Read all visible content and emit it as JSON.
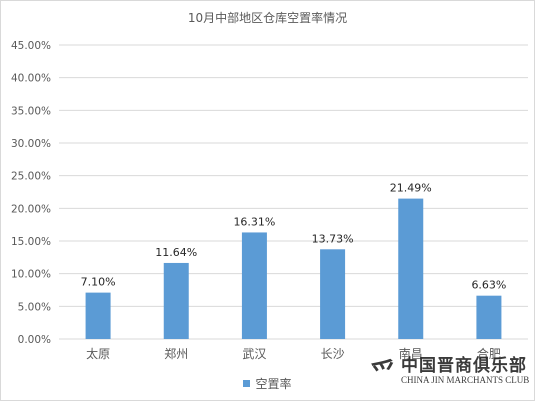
{
  "chart_data": {
    "type": "bar",
    "title": "10月中部地区仓库空置率情况",
    "categories": [
      "太原",
      "郑州",
      "武汉",
      "长沙",
      "南昌",
      "合肥"
    ],
    "series": [
      {
        "name": "空置率",
        "values": [
          7.1,
          11.64,
          16.31,
          13.73,
          21.49,
          6.63
        ],
        "color": "#5b9bd5"
      }
    ],
    "data_labels": [
      "7.10%",
      "11.64%",
      "16.31%",
      "13.73%",
      "21.49%",
      "6.63%"
    ],
    "y_ticks": [
      "0.00%",
      "5.00%",
      "10.00%",
      "15.00%",
      "20.00%",
      "25.00%",
      "30.00%",
      "35.00%",
      "40.00%",
      "45.00%"
    ],
    "ylim": [
      0,
      45
    ],
    "grid": true,
    "legend_position": "bottom",
    "gridline_color": "#d9d9d9"
  },
  "watermark": {
    "logo_glyph": "爫",
    "text_cn": "中国晋商俱乐部",
    "text_en": "CHINA JIN MARCHANTS CLUB"
  }
}
